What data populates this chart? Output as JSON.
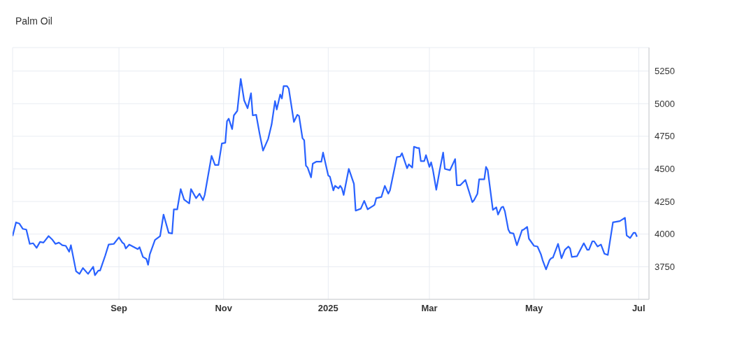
{
  "chart_data": {
    "type": "line",
    "title": "Palm Oil",
    "x": [
      "2024-07-01",
      "2024-07-03",
      "2024-07-05",
      "2024-07-07",
      "2024-07-09",
      "2024-07-11",
      "2024-07-13",
      "2024-07-15",
      "2024-07-17",
      "2024-07-19",
      "2024-07-22",
      "2024-07-24",
      "2024-07-26",
      "2024-07-28",
      "2024-07-30",
      "2024-08-01",
      "2024-08-03",
      "2024-08-04",
      "2024-08-07",
      "2024-08-09",
      "2024-08-11",
      "2024-08-14",
      "2024-08-17",
      "2024-08-18",
      "2024-08-20",
      "2024-08-21",
      "2024-08-24",
      "2024-08-26",
      "2024-08-29",
      "2024-09-01",
      "2024-09-03",
      "2024-09-04",
      "2024-09-05",
      "2024-09-07",
      "2024-09-12",
      "2024-09-13",
      "2024-09-15",
      "2024-09-17",
      "2024-09-18",
      "2024-09-19",
      "2024-09-22",
      "2024-09-25",
      "2024-09-27",
      "2024-09-30",
      "2024-10-02",
      "2024-10-03",
      "2024-10-05",
      "2024-10-07",
      "2024-10-09",
      "2024-10-12",
      "2024-10-13",
      "2024-10-16",
      "2024-10-18",
      "2024-10-20",
      "2024-10-21",
      "2024-10-25",
      "2024-10-27",
      "2024-10-29",
      "2024-10-31",
      "2024-11-02",
      "2024-11-03",
      "2024-11-04",
      "2024-11-06",
      "2024-11-07",
      "2024-11-09",
      "2024-11-11",
      "2024-11-13",
      "2024-11-15",
      "2024-11-17",
      "2024-11-18",
      "2024-11-20",
      "2024-11-22",
      "2024-11-24",
      "2024-11-27",
      "2024-11-29",
      "2024-12-01",
      "2024-12-02",
      "2024-12-04",
      "2024-12-05",
      "2024-12-06",
      "2024-12-08",
      "2024-12-09",
      "2024-12-12",
      "2024-12-14",
      "2024-12-15",
      "2024-12-17",
      "2024-12-18",
      "2024-12-19",
      "2024-12-20",
      "2024-12-22",
      "2024-12-23",
      "2024-12-25",
      "2024-12-28",
      "2024-12-29",
      "2025-01-01",
      "2025-01-02",
      "2025-01-04",
      "2025-01-05",
      "2025-01-07",
      "2025-01-08",
      "2025-01-09",
      "2025-01-10",
      "2025-01-13",
      "2025-01-16",
      "2025-01-17",
      "2025-01-20",
      "2025-01-22",
      "2025-01-24",
      "2025-01-27",
      "2025-01-28",
      "2025-01-29",
      "2025-02-01",
      "2025-02-03",
      "2025-02-05",
      "2025-02-06",
      "2025-02-10",
      "2025-02-12",
      "2025-02-13",
      "2025-02-16",
      "2025-02-17",
      "2025-02-19",
      "2025-02-20",
      "2025-02-22",
      "2025-02-23",
      "2025-02-24",
      "2025-02-26",
      "2025-02-27",
      "2025-03-01",
      "2025-03-02",
      "2025-03-03",
      "2025-03-05",
      "2025-03-07",
      "2025-03-09",
      "2025-03-10",
      "2025-03-13",
      "2025-03-16",
      "2025-03-17",
      "2025-03-19",
      "2025-03-22",
      "2025-03-26",
      "2025-03-27",
      "2025-03-29",
      "2025-03-30",
      "2025-04-02",
      "2025-04-03",
      "2025-04-04",
      "2025-04-07",
      "2025-04-09",
      "2025-04-10",
      "2025-04-12",
      "2025-04-13",
      "2025-04-14",
      "2025-04-16",
      "2025-04-17",
      "2025-04-19",
      "2025-04-21",
      "2025-04-24",
      "2025-04-25",
      "2025-04-27",
      "2025-04-28",
      "2025-05-01",
      "2025-05-03",
      "2025-05-05",
      "2025-05-06",
      "2025-05-08",
      "2025-05-10",
      "2025-05-11",
      "2025-05-12",
      "2025-05-15",
      "2025-05-17",
      "2025-05-19",
      "2025-05-21",
      "2025-05-22",
      "2025-05-23",
      "2025-05-26",
      "2025-05-30",
      "2025-06-01",
      "2025-06-02",
      "2025-06-04",
      "2025-06-05",
      "2025-06-07",
      "2025-06-09",
      "2025-06-11",
      "2025-06-13",
      "2025-06-16",
      "2025-06-20",
      "2025-06-23",
      "2025-06-24",
      "2025-06-26",
      "2025-06-28",
      "2025-06-29",
      "2025-06-30"
    ],
    "series": [
      {
        "color": "#2962ff",
        "values": [
          3985,
          4090,
          4080,
          4040,
          4035,
          3925,
          3930,
          3895,
          3940,
          3935,
          3985,
          3960,
          3925,
          3935,
          3915,
          3910,
          3865,
          3915,
          3715,
          3695,
          3740,
          3695,
          3750,
          3685,
          3720,
          3720,
          3835,
          3920,
          3925,
          3975,
          3935,
          3925,
          3890,
          3920,
          3885,
          3900,
          3825,
          3810,
          3765,
          3845,
          3955,
          3985,
          4150,
          4010,
          4005,
          4190,
          4190,
          4345,
          4265,
          4235,
          4345,
          4275,
          4310,
          4260,
          4300,
          4600,
          4530,
          4530,
          4695,
          4700,
          4865,
          4885,
          4805,
          4910,
          4945,
          5190,
          5025,
          4965,
          5080,
          4910,
          4915,
          4770,
          4640,
          4730,
          4840,
          5020,
          4955,
          5070,
          5040,
          5135,
          5135,
          5115,
          4860,
          4915,
          4905,
          4735,
          4720,
          4525,
          4510,
          4435,
          4540,
          4555,
          4555,
          4625,
          4450,
          4440,
          4335,
          4370,
          4350,
          4370,
          4350,
          4300,
          4500,
          4385,
          4180,
          4195,
          4255,
          4190,
          4215,
          4225,
          4275,
          4285,
          4370,
          4310,
          4335,
          4590,
          4595,
          4620,
          4505,
          4535,
          4510,
          4670,
          4660,
          4660,
          4560,
          4560,
          4605,
          4515,
          4550,
          4495,
          4340,
          4490,
          4625,
          4500,
          4490,
          4575,
          4375,
          4375,
          4415,
          4245,
          4260,
          4310,
          4420,
          4420,
          4515,
          4490,
          4185,
          4205,
          4150,
          4205,
          4210,
          4175,
          4035,
          4010,
          4005,
          3915,
          4030,
          4035,
          4055,
          3965,
          3910,
          3905,
          3845,
          3800,
          3730,
          3800,
          3815,
          3820,
          3925,
          3815,
          3880,
          3905,
          3890,
          3825,
          3830,
          3930,
          3880,
          3880,
          3945,
          3945,
          3905,
          3920,
          3850,
          3840,
          4090,
          4100,
          4125,
          3990,
          3970,
          4010,
          4010,
          3980
        ]
      }
    ],
    "xlim": [
      "2024-07-01",
      "2025-07-07"
    ],
    "xticks": [
      {
        "value": "2024-09-01",
        "label": "Sep"
      },
      {
        "value": "2024-11-01",
        "label": "Nov"
      },
      {
        "value": "2025-01-01",
        "label": "2025"
      },
      {
        "value": "2025-03-01",
        "label": "Mar"
      },
      {
        "value": "2025-05-01",
        "label": "May"
      },
      {
        "value": "2025-07-01",
        "label": "Jul"
      }
    ],
    "ylim": [
      3500,
      5430
    ],
    "yticks": [
      3750,
      4000,
      4250,
      4500,
      4750,
      5000,
      5250
    ],
    "grid": true,
    "marker": "none",
    "line_style": "solid"
  }
}
